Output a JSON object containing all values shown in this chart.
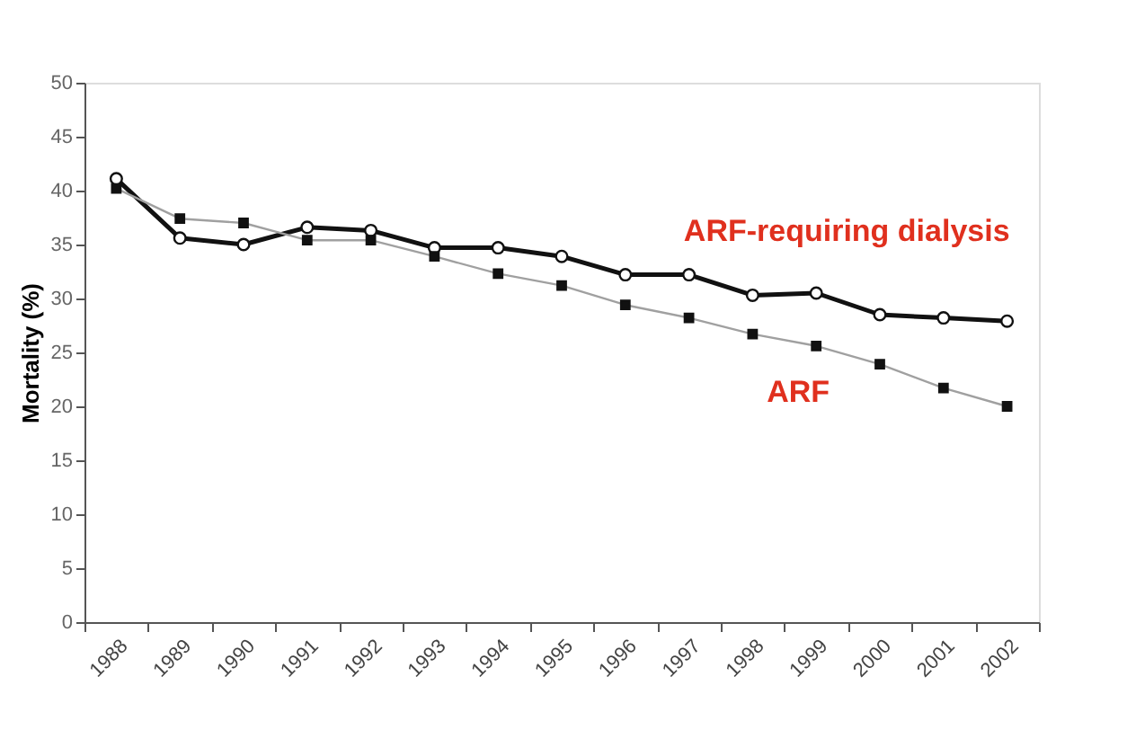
{
  "chart_data": {
    "type": "line",
    "ylabel": "Mortality (%)",
    "categories": [
      "1988",
      "1989",
      "1990",
      "1991",
      "1992",
      "1993",
      "1994",
      "1995",
      "1996",
      "1997",
      "1998",
      "1999",
      "2000",
      "2001",
      "2002"
    ],
    "series": [
      {
        "name": "ARF-requiring dialysis",
        "color": "#111111",
        "marker": "circle",
        "values": [
          41.1,
          35.6,
          35,
          36.6,
          36.3,
          34.7,
          34.7,
          33.9,
          32.2,
          32.2,
          30.3,
          30.5,
          28.5,
          28.2,
          27.9
        ]
      },
      {
        "name": "ARF",
        "color": "#a0a0a0",
        "marker": "square",
        "values": [
          40.2,
          37.4,
          37,
          35.4,
          35.4,
          33.9,
          32.3,
          31.2,
          29.4,
          28.2,
          26.7,
          25.6,
          23.9,
          21.7,
          20
        ]
      }
    ],
    "ylim": [
      0,
      50
    ],
    "yticks": [
      0,
      5,
      10,
      15,
      20,
      25,
      30,
      35,
      40,
      45,
      50
    ],
    "grid": false,
    "legend": false
  }
}
